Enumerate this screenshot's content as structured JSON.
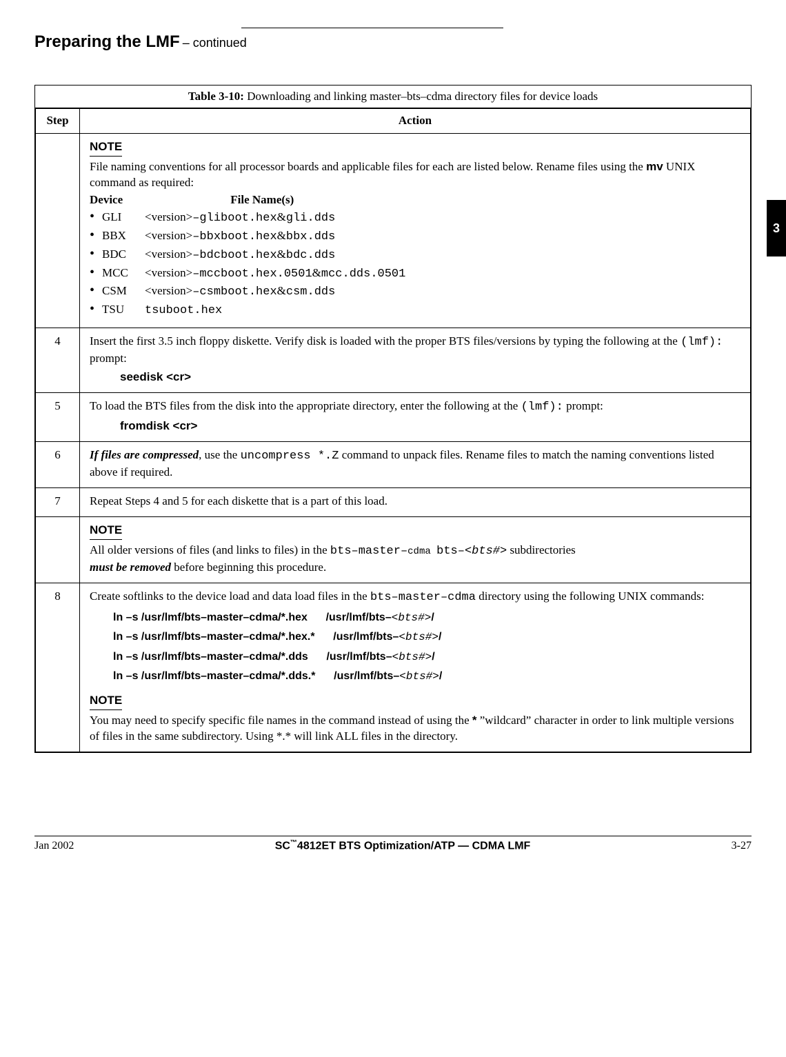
{
  "header": {
    "title_main": "Preparing the LMF",
    "title_suffix": " – continued"
  },
  "side_tab": {
    "number": "3"
  },
  "table": {
    "caption_bold": "Table 3-10:",
    "caption_rest": " Downloading and linking master–bts–cdma directory files for device loads",
    "head_step": "Step",
    "head_action": "Action"
  },
  "note_row": {
    "note_label": "NOTE",
    "line1a": "File naming conventions for all processor boards and applicable files for each are listed below. Rename files using the ",
    "mv": "mv",
    "line1b": " UNIX command as required:",
    "device_hdr": "Device",
    "file_hdr": "File Name(s)",
    "devices": [
      {
        "name": "GLI",
        "ver": "<version>",
        "mono1": "–gliboot.hex",
        "amp": " & ",
        "mono2": "gli.dds"
      },
      {
        "name": "BBX",
        "ver": "<version>",
        "mono1": "–bbxboot.hex ",
        "amp": "& ",
        "mono2": "bbx.dds"
      },
      {
        "name": "BDC",
        "ver": "<version>",
        "mono1": "–bdcboot.hex ",
        "amp": "& ",
        "mono2": "bdc.dds"
      },
      {
        "name": "MCC",
        "ver": "<version>",
        "mono1": "–mccboot.hex.0501 ",
        "amp": "& ",
        "mono2": "mcc.dds.0501"
      },
      {
        "name": "CSM",
        "ver": "<version>",
        "mono1": "–csmboot.hex ",
        "amp": "& ",
        "mono2": "csm.dds"
      },
      {
        "name": "TSU",
        "ver": "",
        "mono1": "tsuboot.hex",
        "amp": "",
        "mono2": ""
      }
    ]
  },
  "row4": {
    "step": "4",
    "text_a": "Insert the first 3.5 inch floppy diskette. Verify disk is loaded with the proper BTS files/versions by typing the following at the ",
    "mono": " (lmf):",
    "text_b": " prompt:",
    "cmd": "seedisk <cr>"
  },
  "row5": {
    "step": "5",
    "text_a": "To load the BTS files from the disk into the appropriate directory, enter the following at the ",
    "mono": "(lmf):",
    "text_b": " prompt:",
    "cmd": "fromdisk <cr>"
  },
  "row6": {
    "step": "6",
    "bi": "If files are compressed",
    "text_a": ", use the ",
    "mono": "uncompress *.Z",
    "text_b": " command to unpack files.  Rename files to match the naming conventions listed above if required."
  },
  "row7": {
    "step": "7",
    "text": "Repeat Steps 4 and 5 for each diskette that is a part of this load."
  },
  "note2": {
    "note_label": "NOTE",
    "text_a": "All older versions of files (and links to files) in the ",
    "mono1": " bts–master–",
    "mono1b": "cdma ",
    "mono2": "bts–",
    "mono_it": "<bts#>",
    "text_b": " subdirectories ",
    "bi": "must be removed",
    "text_c": " before beginning this procedure."
  },
  "row8": {
    "step": "8",
    "intro_a": "Create softlinks to the device load and data load files in the ",
    "intro_mono": "bts–master–cdma",
    "intro_b": " directory using the following UNIX commands:",
    "cmds": [
      {
        "left": "ln  –s  /usr/lmf/bts–master–cdma/*.hex",
        "right_pre": "/usr/lmf/bts–",
        "right_it": "<bts#>",
        "right_post": "/"
      },
      {
        "left": "ln  –s  /usr/lmf/bts–master–cdma/*.hex.*",
        "right_pre": "/usr/lmf/bts–",
        "right_it": "<bts#>",
        "right_post": "/"
      },
      {
        "left": "ln  –s  /usr/lmf/bts–master–cdma/*.dds",
        "right_pre": "/usr/lmf/bts–",
        "right_it": "<bts#>",
        "right_post": "/"
      },
      {
        "left": "ln  –s  /usr/lmf/bts–master–cdma/*.dds.*",
        "right_pre": "/usr/lmf/bts–",
        "right_it": "<bts#>",
        "right_post": "/"
      }
    ],
    "note_label": "NOTE",
    "note_a": "You may need to specify specific file names in the command instead of using the ",
    "star": "*",
    "note_b": " ”wildcard” character in order to link multiple versions of files in the same subdirectory. Using *.* will link ALL files in the directory."
  },
  "footer": {
    "left": "Jan 2002",
    "center_a": "SC",
    "center_tm": "™",
    "center_b": "4812ET BTS Optimization/ATP — CDMA LMF",
    "right": "3-27"
  }
}
